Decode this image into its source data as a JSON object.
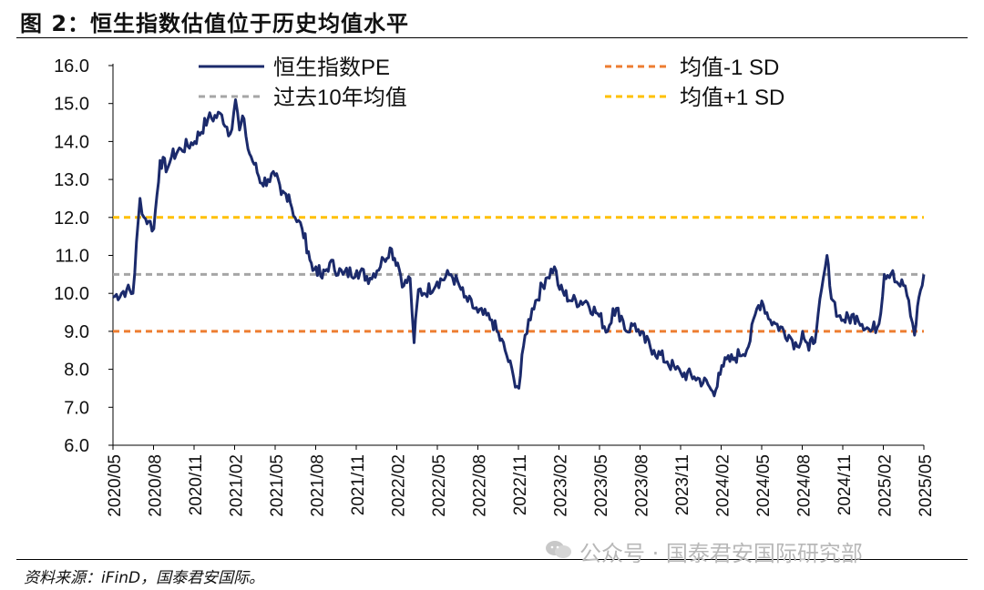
{
  "figure": {
    "title": "图 2：恒生指数估值位于历史均值水平",
    "source": "资料来源：iFinD，国泰君安国际。",
    "watermark": "公众号 · 国泰君安国际研究部"
  },
  "colors": {
    "pe_line": "#1b2a6b",
    "mean_line": "#a6a6a6",
    "minus_sd_line": "#ed7d31",
    "plus_sd_line": "#ffc000"
  },
  "chart_data": {
    "type": "line",
    "title": "",
    "xlabel": "",
    "ylabel": "",
    "ylim": [
      6.0,
      16.0
    ],
    "yticks": [
      "6.0",
      "7.0",
      "8.0",
      "9.0",
      "10.0",
      "11.0",
      "12.0",
      "13.0",
      "14.0",
      "15.0",
      "16.0"
    ],
    "xticks": [
      "2020/05",
      "2020/08",
      "2020/11",
      "2021/02",
      "2021/05",
      "2021/08",
      "2021/11",
      "2022/02",
      "2022/05",
      "2022/08",
      "2022/11",
      "2023/02",
      "2023/05",
      "2023/08",
      "2023/11",
      "2024/02",
      "2024/05",
      "2024/08",
      "2024/11",
      "2025/02",
      "2025/05"
    ],
    "legend": [
      {
        "label": "恒生指数PE",
        "style": "solid",
        "series": "pe"
      },
      {
        "label": "均值-1 SD",
        "style": "dashed",
        "series": "minus_sd"
      },
      {
        "label": "过去10年均值",
        "style": "dashed",
        "series": "mean"
      },
      {
        "label": "均值+1 SD",
        "style": "dashed",
        "series": "plus_sd"
      }
    ],
    "legend_position": "top",
    "grid": false,
    "reference_lines": {
      "mean": 10.5,
      "minus_sd": 9.0,
      "plus_sd": 12.0
    },
    "series": [
      {
        "name": "恒生指数PE",
        "x": [
          "2020-05",
          "2020-06",
          "2020-06-15",
          "2020-07",
          "2020-07-10",
          "2020-07-20",
          "2020-08",
          "2020-08-15",
          "2020-09",
          "2020-09-10",
          "2020-10",
          "2020-11",
          "2020-12",
          "2021-01",
          "2021-01-20",
          "2021-02",
          "2021-02-10",
          "2021-02-20",
          "2021-03",
          "2021-03-15",
          "2021-04",
          "2021-04-15",
          "2021-05",
          "2021-05-15",
          "2021-06",
          "2021-06-15",
          "2021-07",
          "2021-07-15",
          "2021-07-25",
          "2021-08",
          "2021-08-15",
          "2021-09",
          "2021-10",
          "2021-11",
          "2021-12",
          "2022-01",
          "2022-01-15",
          "2022-02",
          "2022-02-15",
          "2022-03",
          "2022-03-10",
          "2022-03-20",
          "2022-04",
          "2022-05",
          "2022-06",
          "2022-06-20",
          "2022-07",
          "2022-08",
          "2022-09",
          "2022-10",
          "2022-10-20",
          "2022-11",
          "2022-11-15",
          "2022-12",
          "2023-01",
          "2023-01-20",
          "2023-02",
          "2023-03",
          "2023-04",
          "2023-05",
          "2023-05-20",
          "2023-06",
          "2023-06-20",
          "2023-07",
          "2023-07-20",
          "2023-08",
          "2023-09",
          "2023-10",
          "2023-10-20",
          "2023-11",
          "2023-12",
          "2024-01",
          "2024-01-15",
          "2024-01-25",
          "2024-02",
          "2024-03",
          "2024-04",
          "2024-04-20",
          "2024-05",
          "2024-05-20",
          "2024-06",
          "2024-07",
          "2024-07-20",
          "2024-08",
          "2024-08-15",
          "2024-09",
          "2024-09-25",
          "2024-10",
          "2024-10-20",
          "2024-11",
          "2024-12",
          "2025-01",
          "2025-01-20",
          "2025-02",
          "2025-02-20",
          "2025-03",
          "2025-03-20",
          "2025-04",
          "2025-04-10",
          "2025-04-20",
          "2025-05"
        ],
        "values": [
          9.9,
          10.1,
          10.0,
          12.5,
          12.0,
          11.9,
          11.7,
          13.5,
          13.3,
          13.6,
          13.8,
          14.0,
          14.6,
          14.7,
          14.2,
          15.1,
          14.3,
          14.6,
          13.8,
          13.4,
          12.9,
          13.0,
          13.1,
          12.6,
          12.6,
          12.0,
          11.7,
          11.1,
          10.6,
          10.7,
          10.4,
          10.8,
          10.5,
          10.6,
          10.4,
          10.9,
          11.2,
          10.8,
          10.2,
          10.4,
          8.7,
          10.1,
          10.0,
          10.3,
          10.5,
          10.2,
          9.9,
          9.5,
          9.3,
          8.5,
          7.8,
          7.5,
          8.9,
          9.6,
          10.4,
          10.7,
          10.1,
          9.8,
          9.8,
          9.4,
          9.0,
          9.6,
          9.4,
          9.0,
          9.2,
          8.9,
          8.5,
          8.2,
          8.0,
          7.9,
          7.8,
          7.6,
          7.3,
          7.9,
          8.1,
          8.3,
          8.6,
          9.6,
          9.8,
          9.3,
          9.2,
          8.9,
          8.6,
          9.0,
          8.5,
          9.0,
          11.0,
          10.2,
          9.4,
          9.3,
          9.4,
          9.0,
          9.2,
          10.5,
          10.6,
          10.3,
          10.2,
          9.4,
          8.9,
          9.9,
          10.5
        ]
      }
    ]
  }
}
